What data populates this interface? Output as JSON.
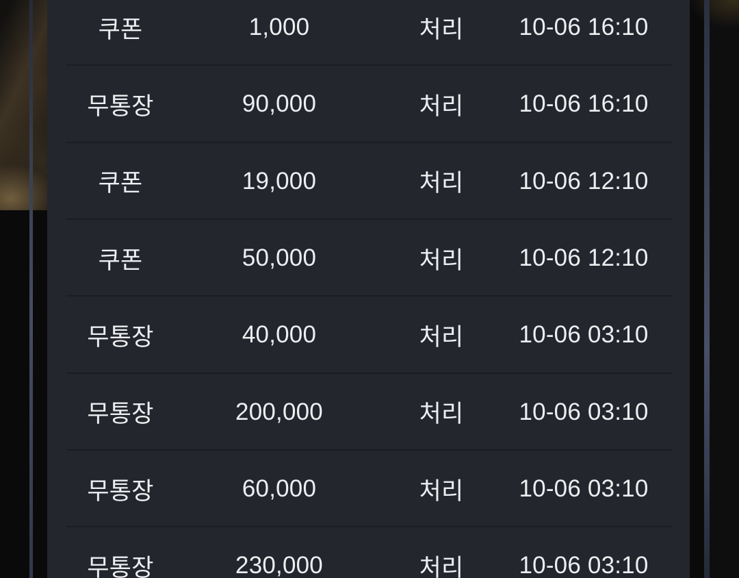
{
  "colors": {
    "background": "#0a0a0b",
    "panel": "#23262d",
    "divider": "#1a1d24",
    "text": "#edeef0",
    "vertical_rule": "#3d4456"
  },
  "table": {
    "rows": [
      {
        "type": "쿠폰",
        "amount": "1,000",
        "status": "처리",
        "datetime": "10-06 16:10"
      },
      {
        "type": "무통장",
        "amount": "90,000",
        "status": "처리",
        "datetime": "10-06 16:10"
      },
      {
        "type": "쿠폰",
        "amount": "19,000",
        "status": "처리",
        "datetime": "10-06 12:10"
      },
      {
        "type": "쿠폰",
        "amount": "50,000",
        "status": "처리",
        "datetime": "10-06 12:10"
      },
      {
        "type": "무통장",
        "amount": "40,000",
        "status": "처리",
        "datetime": "10-06 03:10"
      },
      {
        "type": "무통장",
        "amount": "200,000",
        "status": "처리",
        "datetime": "10-06 03:10"
      },
      {
        "type": "무통장",
        "amount": "60,000",
        "status": "처리",
        "datetime": "10-06 03:10"
      },
      {
        "type": "무통장",
        "amount": "230,000",
        "status": "처리",
        "datetime": "10-06 03:10"
      }
    ]
  }
}
